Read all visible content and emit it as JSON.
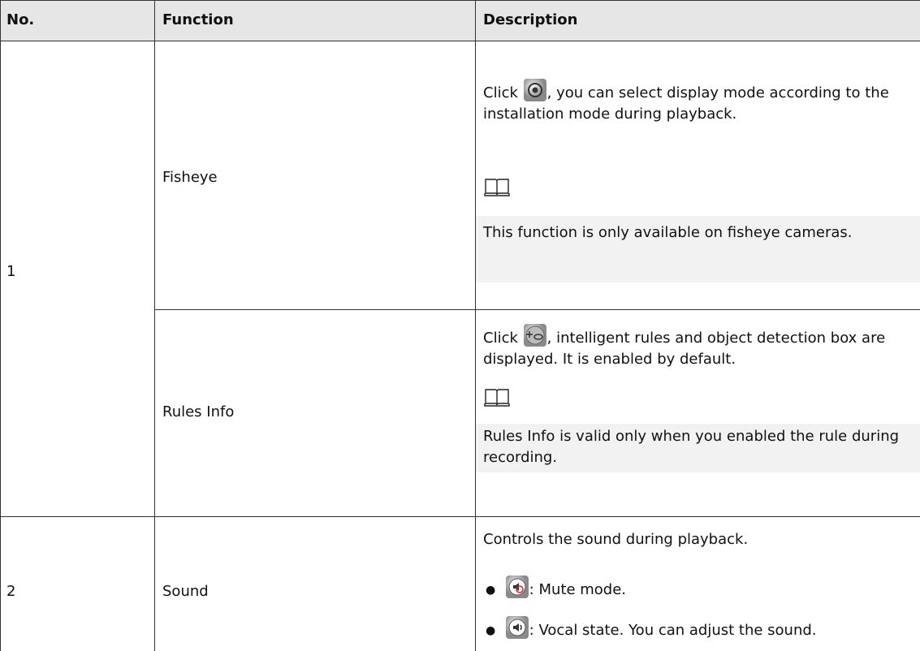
{
  "table": {
    "header": [
      "No.",
      "Function",
      "Description"
    ],
    "groups": [
      {
        "no": "1",
        "rows": [
          {
            "function": "Fisheye",
            "description": {
              "before": "Click",
              "after": ", you can select display mode according to the installation mode during playback.",
              "note": "This function is only available on fisheye cameras."
            }
          },
          {
            "function": "Rules Info",
            "description": {
              "before": "Click",
              "after": ", intelligent rules and object detection box are displayed. It is enabled by default.",
              "note": "Rules Info is valid only when you enabled the rule during recording."
            }
          }
        ]
      },
      {
        "no": "2",
        "rows": [
          {
            "function": "Sound",
            "description": {
              "intro": "Controls the sound during playback.",
              "bullets": [
                ": Mute mode.",
                ": Vocal state. You can adjust the sound."
              ]
            }
          }
        ]
      }
    ]
  }
}
